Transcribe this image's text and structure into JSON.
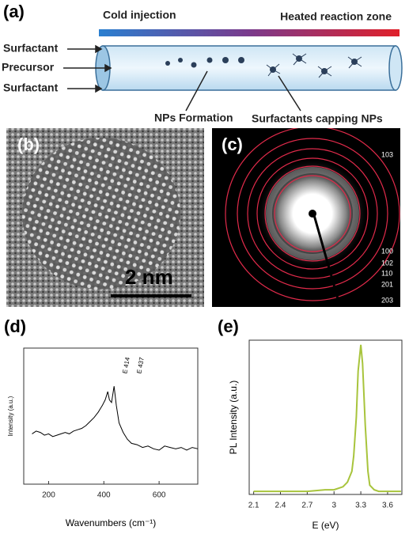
{
  "panel_a": {
    "label": "(a)",
    "gradient_start": "Cold injection",
    "gradient_end": "Heated reaction zone",
    "inputs": [
      "Surfactant",
      "Precursor",
      "Surfactant"
    ],
    "annotations": [
      "NPs Formation",
      "Surfactants capping NPs"
    ]
  },
  "panel_b": {
    "label": "(b)",
    "scale_bar": "2 nm"
  },
  "panel_c": {
    "label": "(c)",
    "rings": [
      "103",
      "100",
      "102",
      "110",
      "201",
      "203"
    ]
  },
  "chart_data": [
    {
      "type": "line",
      "label": "(d)",
      "x_label": "Wavenumbers (cm⁻¹)",
      "y_label": "Intensity (a.u.)",
      "annotations": [
        "E 414",
        "E 437"
      ],
      "color": "#000000",
      "x": [
        140,
        155,
        170,
        185,
        200,
        215,
        230,
        245,
        260,
        275,
        290,
        305,
        320,
        335,
        350,
        365,
        380,
        395,
        405,
        414,
        420,
        428,
        437,
        445,
        455,
        470,
        485,
        500,
        520,
        540,
        560,
        580,
        600,
        620,
        640,
        660,
        680,
        700,
        720,
        740
      ],
      "values": [
        37,
        39,
        38,
        36,
        37,
        35,
        36,
        37,
        38,
        37,
        39,
        40,
        41,
        43,
        46,
        49,
        53,
        58,
        62,
        68,
        62,
        60,
        72,
        58,
        45,
        38,
        33,
        30,
        29,
        27,
        28,
        26,
        25,
        28,
        27,
        26,
        27,
        25,
        27,
        26
      ],
      "xlim": [
        110,
        740
      ],
      "ylim": [
        0,
        100
      ],
      "xticks": [
        200,
        400,
        600
      ]
    },
    {
      "type": "line",
      "label": "(e)",
      "x_label": "E (eV)",
      "y_label": "PL Intensity (a.u.)",
      "color": "#a8c43c",
      "x": [
        2.1,
        2.3,
        2.5,
        2.7,
        2.9,
        3.0,
        3.1,
        3.15,
        3.2,
        3.22,
        3.25,
        3.27,
        3.3,
        3.32,
        3.35,
        3.38,
        3.4,
        3.45,
        3.5,
        3.6,
        3.7,
        3.75
      ],
      "values": [
        2,
        2,
        2,
        2,
        3,
        3,
        5,
        8,
        15,
        25,
        50,
        80,
        97,
        85,
        45,
        15,
        6,
        3,
        2,
        2,
        2,
        2
      ],
      "xlim": [
        2.05,
        3.76
      ],
      "ylim": [
        0,
        100
      ],
      "xticks": [
        2.1,
        2.4,
        2.7,
        3,
        3.3,
        3.6
      ]
    }
  ]
}
